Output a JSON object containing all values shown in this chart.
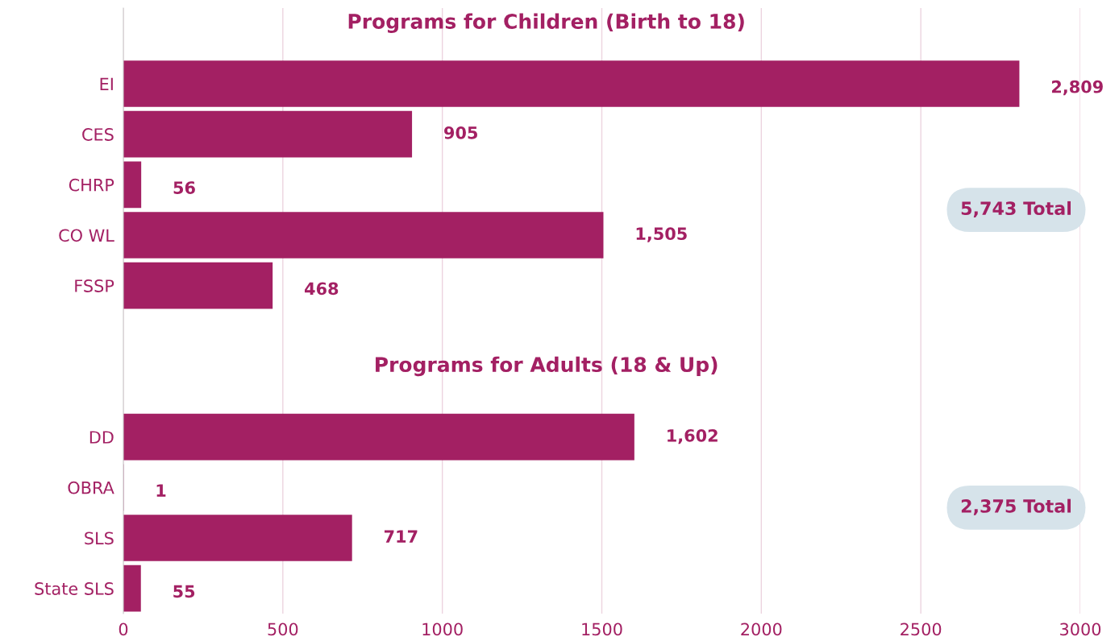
{
  "chart_data": {
    "type": "bar",
    "orientation": "horizontal",
    "title": "Programs for Children (Birth to 18)",
    "categories": [
      "EI",
      "CES",
      "CHRP",
      "CO WL",
      "FSSP",
      null,
      null,
      "DD",
      "OBRA",
      "SLS",
      "State SLS"
    ],
    "values": [
      2809,
      905,
      56,
      1505,
      468,
      null,
      null,
      1602,
      1,
      717,
      55
    ],
    "value_labels": [
      "2,809",
      "905",
      "56",
      "1,505",
      "468",
      null,
      null,
      "1,602",
      "1",
      "717",
      "55"
    ],
    "color": "#a32063",
    "xlim": [
      0,
      3000
    ],
    "xticks": [
      0,
      500,
      1000,
      1500,
      2000,
      2500,
      3000
    ],
    "grid": "x",
    "annotations": [
      "Programs for Adults (18 & Up)",
      "5,743 Total",
      "2,375 Total"
    ]
  }
}
